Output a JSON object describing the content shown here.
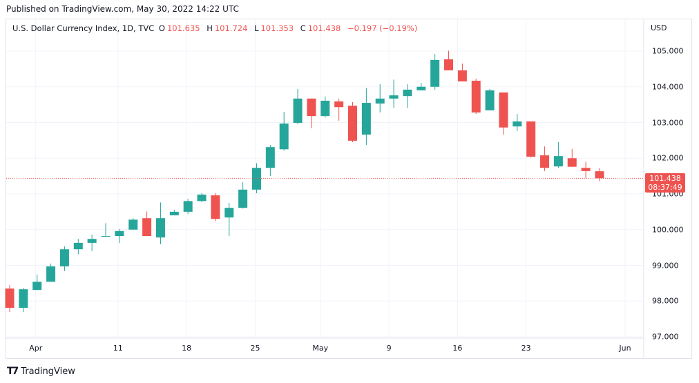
{
  "published": "Published on TradingView.com, May 30, 2022 14:22 UTC",
  "legend": {
    "title": "U.S. Dollar Currency Index, 1D, TVC",
    "o_label": "O",
    "o": "101.635",
    "h_label": "H",
    "h": "101.724",
    "l_label": "L",
    "l": "101.353",
    "c_label": "C",
    "c": "101.438",
    "change": "−0.197 (−0.19%)"
  },
  "currency": "USD",
  "last_price": {
    "value": "101.438",
    "countdown": "08:37:49"
  },
  "brand": "TradingView",
  "colors": {
    "up": "#26a69a",
    "down": "#ef5350",
    "grid": "#f0f3fa"
  },
  "chart_data": {
    "type": "candlestick",
    "title": "U.S. Dollar Currency Index, 1D, TVC",
    "ylim": [
      97,
      105.3
    ],
    "y_ticks": [
      "105.000",
      "104.000",
      "103.000",
      "102.000",
      "101.000",
      "100.000",
      "99.000",
      "98.000",
      "97.000"
    ],
    "y_tick_values": [
      105,
      104,
      103,
      102,
      101,
      100,
      99,
      98,
      97
    ],
    "x_ticks": [
      {
        "label": "Apr",
        "index": 2
      },
      {
        "label": "11",
        "index": 8
      },
      {
        "label": "18",
        "index": 13
      },
      {
        "label": "25",
        "index": 18
      },
      {
        "label": "May",
        "index": 23
      },
      {
        "label": "9",
        "index": 28
      },
      {
        "label": "16",
        "index": 33
      },
      {
        "label": "23",
        "index": 38
      },
      {
        "label": "Jun",
        "index": 45
      }
    ],
    "candles": [
      {
        "d": "Mar 30",
        "o": 98.35,
        "h": 98.45,
        "l": 97.69,
        "c": 97.81
      },
      {
        "d": "Mar 31",
        "o": 97.81,
        "h": 98.37,
        "l": 97.69,
        "c": 98.33
      },
      {
        "d": "Apr 1",
        "o": 98.31,
        "h": 98.74,
        "l": 98.31,
        "c": 98.54
      },
      {
        "d": "Apr 4",
        "o": 98.54,
        "h": 99.05,
        "l": 98.54,
        "c": 98.97
      },
      {
        "d": "Apr 5",
        "o": 98.97,
        "h": 99.53,
        "l": 98.84,
        "c": 99.45
      },
      {
        "d": "Apr 6",
        "o": 99.45,
        "h": 99.74,
        "l": 99.31,
        "c": 99.63
      },
      {
        "d": "Apr 7",
        "o": 99.63,
        "h": 99.86,
        "l": 99.4,
        "c": 99.74
      },
      {
        "d": "Apr 8",
        "o": 99.8,
        "h": 100.18,
        "l": 99.8,
        "c": 99.82
      },
      {
        "d": "Apr 11",
        "o": 99.82,
        "h": 100.02,
        "l": 99.63,
        "c": 99.96
      },
      {
        "d": "Apr 12",
        "o": 100.0,
        "h": 100.32,
        "l": 100.0,
        "c": 100.28
      },
      {
        "d": "Apr 13",
        "o": 100.32,
        "h": 100.51,
        "l": 99.82,
        "c": 99.82
      },
      {
        "d": "Apr 14",
        "o": 99.78,
        "h": 100.76,
        "l": 99.59,
        "c": 100.32
      },
      {
        "d": "Apr 15",
        "o": 100.4,
        "h": 100.55,
        "l": 100.4,
        "c": 100.5
      },
      {
        "d": "Apr 18",
        "o": 100.5,
        "h": 100.86,
        "l": 100.44,
        "c": 100.8
      },
      {
        "d": "Apr 19",
        "o": 100.8,
        "h": 101.02,
        "l": 100.77,
        "c": 100.98
      },
      {
        "d": "Apr 20",
        "o": 100.96,
        "h": 101.02,
        "l": 100.24,
        "c": 100.3
      },
      {
        "d": "Apr 21",
        "o": 100.34,
        "h": 100.75,
        "l": 99.82,
        "c": 100.61
      },
      {
        "d": "Apr 22",
        "o": 100.61,
        "h": 101.33,
        "l": 100.59,
        "c": 101.12
      },
      {
        "d": "Apr 25",
        "o": 101.12,
        "h": 101.86,
        "l": 101.02,
        "c": 101.73
      },
      {
        "d": "Apr 26",
        "o": 101.73,
        "h": 102.37,
        "l": 101.5,
        "c": 102.31
      },
      {
        "d": "Apr 27",
        "o": 102.25,
        "h": 103.3,
        "l": 102.21,
        "c": 102.97
      },
      {
        "d": "Apr 28",
        "o": 102.99,
        "h": 103.94,
        "l": 102.95,
        "c": 103.67
      },
      {
        "d": "Apr 29",
        "o": 103.67,
        "h": 103.67,
        "l": 102.84,
        "c": 103.18
      },
      {
        "d": "May 2",
        "o": 103.18,
        "h": 103.73,
        "l": 103.14,
        "c": 103.61
      },
      {
        "d": "May 3",
        "o": 103.59,
        "h": 103.67,
        "l": 103.05,
        "c": 103.43
      },
      {
        "d": "May 4",
        "o": 103.47,
        "h": 103.57,
        "l": 102.45,
        "c": 102.49
      },
      {
        "d": "May 5",
        "o": 102.66,
        "h": 103.96,
        "l": 102.37,
        "c": 103.55
      },
      {
        "d": "May 6",
        "o": 103.53,
        "h": 104.07,
        "l": 103.28,
        "c": 103.67
      },
      {
        "d": "May 9",
        "o": 103.67,
        "h": 104.2,
        "l": 103.41,
        "c": 103.76
      },
      {
        "d": "May 10",
        "o": 103.74,
        "h": 104.07,
        "l": 103.41,
        "c": 103.92
      },
      {
        "d": "May 11",
        "o": 103.9,
        "h": 104.11,
        "l": 103.9,
        "c": 104.0
      },
      {
        "d": "May 12",
        "o": 104.0,
        "h": 104.92,
        "l": 103.92,
        "c": 104.75
      },
      {
        "d": "May 13",
        "o": 104.77,
        "h": 105.01,
        "l": 104.46,
        "c": 104.46
      },
      {
        "d": "May 16",
        "o": 104.46,
        "h": 104.65,
        "l": 104.15,
        "c": 104.15
      },
      {
        "d": "May 17",
        "o": 104.17,
        "h": 104.23,
        "l": 103.24,
        "c": 103.28
      },
      {
        "d": "May 18",
        "o": 103.34,
        "h": 103.94,
        "l": 103.34,
        "c": 103.9
      },
      {
        "d": "May 19",
        "o": 103.84,
        "h": 103.84,
        "l": 102.66,
        "c": 102.86
      },
      {
        "d": "May 20",
        "o": 102.89,
        "h": 103.24,
        "l": 102.76,
        "c": 103.03
      },
      {
        "d": "May 23",
        "o": 103.03,
        "h": 103.03,
        "l": 102.02,
        "c": 102.04
      },
      {
        "d": "May 24",
        "o": 102.08,
        "h": 102.33,
        "l": 101.64,
        "c": 101.73
      },
      {
        "d": "May 25",
        "o": 101.77,
        "h": 102.45,
        "l": 101.73,
        "c": 102.06
      },
      {
        "d": "May 26",
        "o": 102.0,
        "h": 102.26,
        "l": 101.76,
        "c": 101.76
      },
      {
        "d": "May 27",
        "o": 101.73,
        "h": 101.9,
        "l": 101.44,
        "c": 101.64
      },
      {
        "d": "May 30",
        "o": 101.635,
        "h": 101.724,
        "l": 101.353,
        "c": 101.438
      }
    ]
  }
}
